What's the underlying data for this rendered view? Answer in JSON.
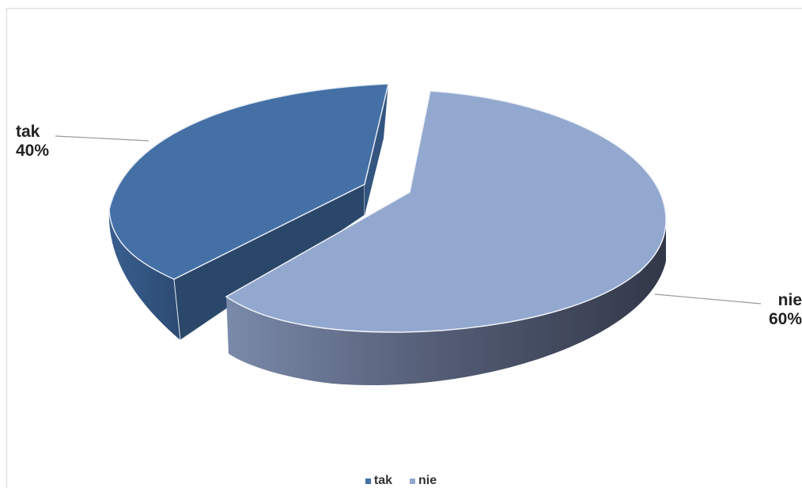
{
  "colors": {
    "tak": "#4470a6",
    "tak_side": "#2e4d75",
    "tak_inner": "#2a4769",
    "nie": "#93a8cf",
    "nie_side_light": "#7282a3",
    "nie_side_dark": "#353b4a"
  },
  "chart_data": {
    "type": "pie",
    "style": "3d-exploded",
    "categories": [
      "tak",
      "nie"
    ],
    "values": [
      40,
      60
    ],
    "labels": [
      {
        "category": "tak",
        "percent": "40%"
      },
      {
        "category": "nie",
        "percent": "60%"
      }
    ],
    "legend": {
      "position": "bottom",
      "entries": [
        "tak",
        "nie"
      ]
    }
  }
}
